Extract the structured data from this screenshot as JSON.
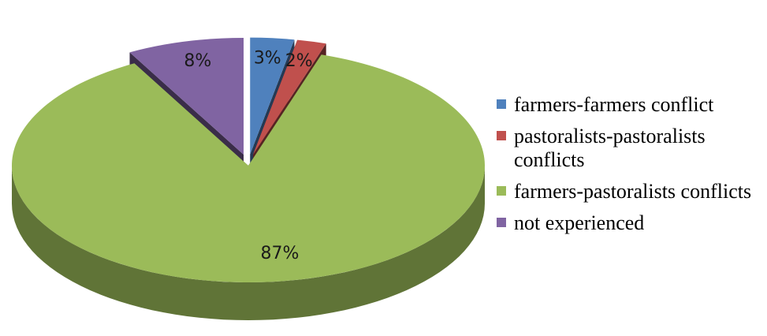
{
  "chart_data": {
    "type": "pie",
    "title": "",
    "categories": [
      "farmers-farmers conflict",
      "pastoralists-pastoralists conflicts",
      "farmers-pastoralists conflicts",
      "not experienced"
    ],
    "values": [
      3,
      2,
      87,
      8
    ],
    "labels": [
      "3%",
      "2%",
      "87%",
      "8%"
    ],
    "colors": [
      "#4f81bd",
      "#c0504d",
      "#9bbb59",
      "#8064a2"
    ],
    "legend_position": "right",
    "style": "3d-exploded"
  }
}
